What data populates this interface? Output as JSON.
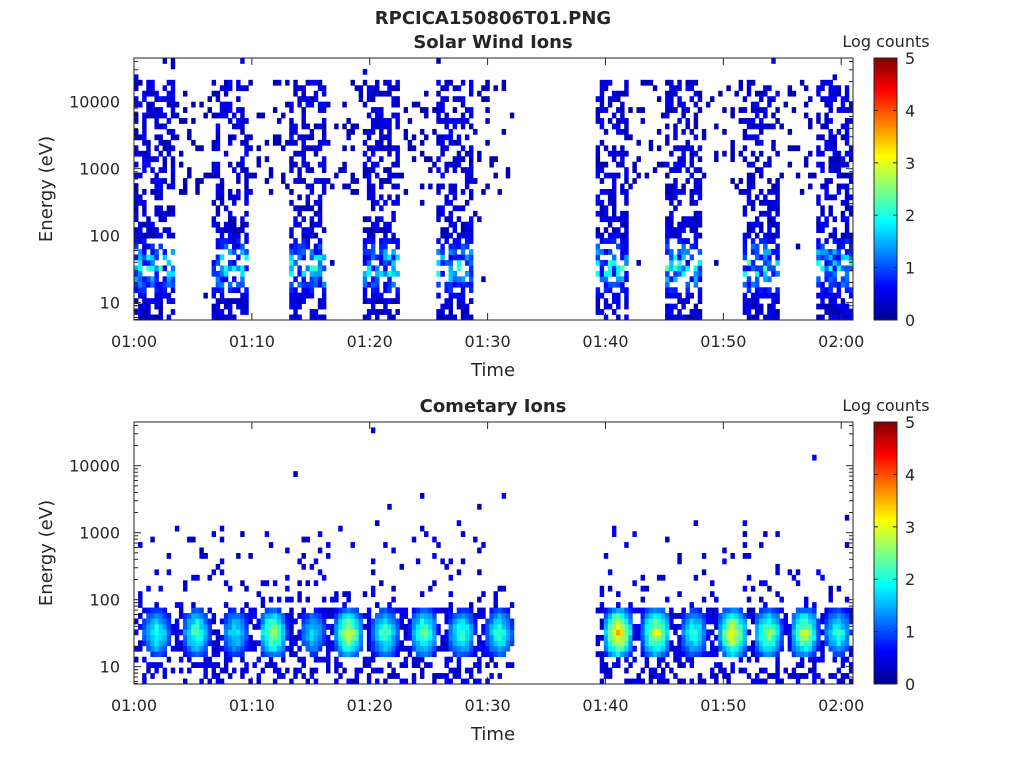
{
  "figure": {
    "title": "RPCICA150806T01.PNG"
  },
  "chart_data": [
    {
      "type": "heatmap",
      "title": "Solar Wind Ions",
      "xlabel": "Time",
      "ylabel": "Energy (eV)",
      "x_ticks": [
        "01:00",
        "01:10",
        "01:20",
        "01:30",
        "01:40",
        "01:50",
        "02:00"
      ],
      "xlim_minutes": [
        0,
        61
      ],
      "y_scale": "log",
      "y_ticks": [
        10,
        100,
        1000,
        10000
      ],
      "ylim": [
        5.5,
        45000
      ],
      "colorbar": {
        "label": "Log counts",
        "ticks": [
          0,
          1,
          2,
          3,
          4,
          5
        ],
        "range": [
          0,
          5
        ],
        "colormap": "jet"
      },
      "measurement_windows_minutes": [
        [
          0,
          3.4
        ],
        [
          6.6,
          9.7
        ],
        [
          13,
          16.2
        ],
        [
          19.3,
          22.5
        ],
        [
          25.6,
          28.7
        ],
        [
          39,
          42
        ],
        [
          45.2,
          48.3
        ],
        [
          51.5,
          54.6
        ],
        [
          57.8,
          61
        ]
      ],
      "sparse_extension_minutes": [
        [
          3.4,
          6.6
        ],
        [
          9.7,
          13
        ],
        [
          16.2,
          19.3
        ],
        [
          22.5,
          25.6
        ],
        [
          28.7,
          32.2
        ],
        [
          42,
          45.2
        ],
        [
          48.3,
          51.5
        ],
        [
          54.6,
          57.8
        ]
      ],
      "data_gap_minutes": [
        32.2,
        39
      ],
      "dense_energy_range_eV": [
        6,
        14000
      ],
      "peak_energy_eV": 35,
      "peak_log_counts": 2.5
    },
    {
      "type": "heatmap",
      "title": "Cometary Ions",
      "xlabel": "Time",
      "ylabel": "Energy (eV)",
      "x_ticks": [
        "01:00",
        "01:10",
        "01:20",
        "01:30",
        "01:40",
        "01:50",
        "02:00"
      ],
      "xlim_minutes": [
        0,
        61
      ],
      "y_scale": "log",
      "y_ticks": [
        10,
        100,
        1000,
        10000
      ],
      "ylim": [
        5.5,
        45000
      ],
      "colorbar": {
        "label": "Log counts",
        "ticks": [
          0,
          1,
          2,
          3,
          4,
          5
        ],
        "range": [
          0,
          5
        ],
        "colormap": "jet"
      },
      "data_coverage_minutes": [
        [
          0,
          32.2
        ],
        [
          39,
          61
        ]
      ],
      "data_gap_minutes": [
        32.2,
        39
      ],
      "dense_energy_range_eV": [
        6,
        80
      ],
      "peak_energy_eV": 32,
      "hotspot_minutes": [
        1.9,
        5.3,
        8.6,
        11.8,
        15.2,
        18.2,
        21.3,
        24.6,
        27.8,
        31,
        41.1,
        44.3,
        47.5,
        50.8,
        53.8,
        56.9,
        59.7
      ],
      "hotspot_peak_log_counts": [
        2.4,
        2.6,
        2.1,
        3.1,
        2.0,
        3.3,
        2.6,
        2.8,
        2.5,
        2.5,
        3.9,
        3.4,
        2.4,
        3.6,
        3.0,
        3.2,
        2.4
      ]
    }
  ]
}
